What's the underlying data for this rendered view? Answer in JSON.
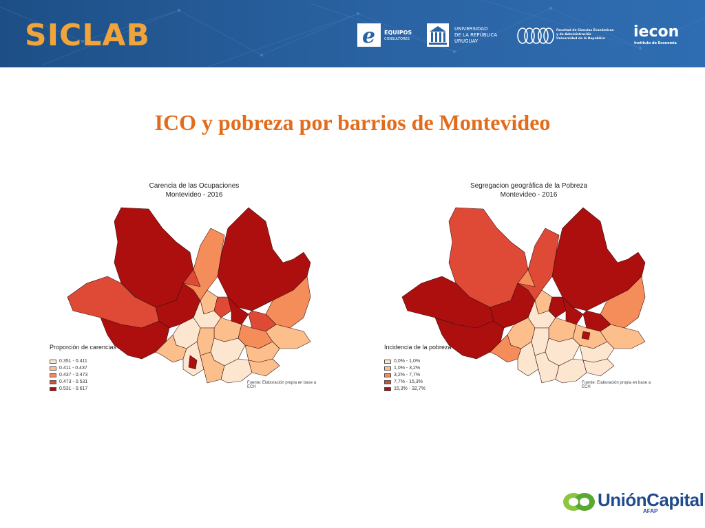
{
  "header": {
    "brand": "SICLAB",
    "logos": {
      "equipos": {
        "name": "EQUIPOS",
        "sub": "CONSULTORES",
        "icon": "equipos-e-icon"
      },
      "udelar": {
        "line1": "UNIVERSIDAD",
        "line2": "DE LA REPÚBLICA",
        "line3": "URUGUAY",
        "icon": "university-building-icon"
      },
      "ccee": {
        "line1": "Facultad de Ciencias Económicas",
        "line2": "y de Administración",
        "line3": "Universidad de la República",
        "icon": "ccee-rings-icon"
      },
      "iecon": {
        "name": "iecon",
        "sub": "Instituto de Economía"
      }
    }
  },
  "slide": {
    "title": "ICO y pobreza por barrios de Montevideo"
  },
  "maps": [
    {
      "title": "Carencia de las Ocupaciones",
      "subtitle": "Montevideo - 2016",
      "legend_title": "Proporción de carencias",
      "legend": [
        {
          "label": "0.351 - 0.411",
          "color": "#fde6cf"
        },
        {
          "label": "0.411 - 0.437",
          "color": "#fcbf8c"
        },
        {
          "label": "0.437 - 0.473",
          "color": "#f58d5a"
        },
        {
          "label": "0.473 - 0.531",
          "color": "#df4a36"
        },
        {
          "label": "0.531 - 0.617",
          "color": "#ad0f0f"
        }
      ],
      "source": "Fuente: Elaboración propia en base a ECH"
    },
    {
      "title": "Segregacion geográfica de la Pobreza",
      "subtitle": "Montevideo - 2016",
      "legend_title": "Incidencia de la pobreza",
      "legend": [
        {
          "label": "0,0% - 1,0%",
          "color": "#fde6cf"
        },
        {
          "label": "1,0% - 3,2%",
          "color": "#fcbf8c"
        },
        {
          "label": "3,2% - 7,7%",
          "color": "#f58d5a"
        },
        {
          "label": "7,7% - 15,3%",
          "color": "#df4a36"
        },
        {
          "label": "15,3% - 32,7%",
          "color": "#ad0f0f"
        }
      ],
      "source": "Fuente: Elaboración propia en base a ECH"
    }
  ],
  "footer": {
    "logo_name": "UniónCapital",
    "logo_sub": "AFAP",
    "icon": "union-capital-leaf-icon"
  }
}
